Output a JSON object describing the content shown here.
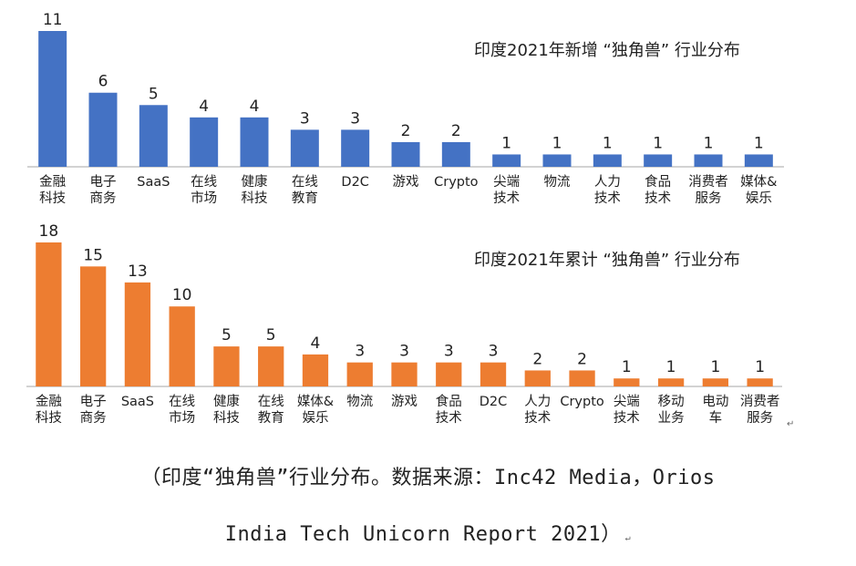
{
  "chart_data": [
    {
      "type": "bar",
      "title": "印度2021年新增 “独角兽” 行业分布",
      "color": "#4472C4",
      "categories": [
        "金融\n科技",
        "电子\n商务",
        "SaaS",
        "在线\n市场",
        "健康\n科技",
        "在线\n教育",
        "D2C",
        "游戏",
        "Crypto",
        "尖端\n技术",
        "物流",
        "人力\n技术",
        "食品\n技术",
        "消费者\n服务",
        "媒体&\n娱乐"
      ],
      "values": [
        11,
        6,
        5,
        4,
        4,
        3,
        3,
        2,
        2,
        1,
        1,
        1,
        1,
        1,
        1
      ],
      "ylim": [
        0,
        11
      ]
    },
    {
      "type": "bar",
      "title": "印度2021年累计 “独角兽” 行业分布",
      "color": "#ED7D31",
      "categories": [
        "金融\n科技",
        "电子\n商务",
        "SaaS",
        "在线\n市场",
        "健康\n科技",
        "在线\n教育",
        "媒体&\n娱乐",
        "物流",
        "游戏",
        "食品\n技术",
        "D2C",
        "人力\n技术",
        "Crypto",
        "尖端\n技术",
        "移动\n业务",
        "电动\n车",
        "消费者\n服务"
      ],
      "values": [
        18,
        15,
        13,
        10,
        5,
        5,
        4,
        3,
        3,
        3,
        3,
        2,
        2,
        1,
        1,
        1,
        1
      ],
      "ylim": [
        0,
        18
      ]
    }
  ],
  "caption": {
    "line1": "（印度“独角兽”行业分布。数据来源：Inc42 Media，Orios",
    "line2": "India Tech Unicorn Report 2021）",
    "mark": "↵"
  }
}
